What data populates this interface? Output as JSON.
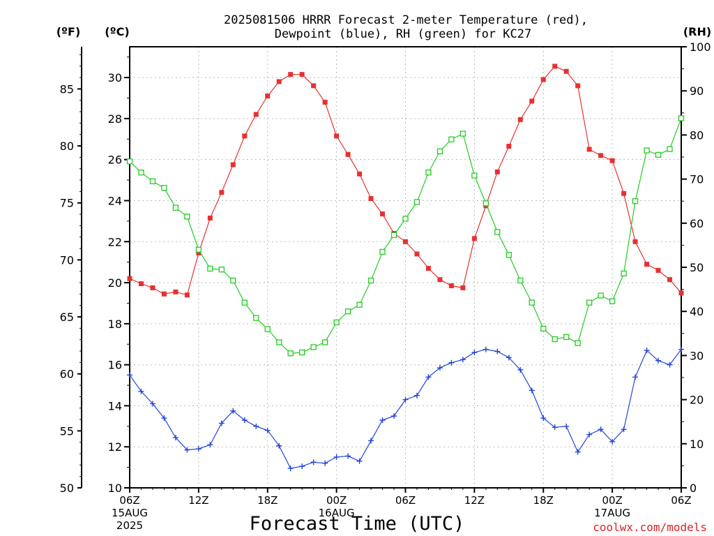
{
  "chart_data": {
    "type": "line",
    "title_line1": "2025081506 HRRR Forecast 2-meter Temperature (red),",
    "title_line2": "Dewpoint (blue), RH (green) for KC27",
    "xlabel": "Forecast Time (UTC)",
    "credit": "coolwx.com/models",
    "left_outer_unit": "(ºF)",
    "left_inner_unit": "(ºC)",
    "right_unit": "(RH)",
    "hours_range": [
      0,
      48
    ],
    "celsius_range": [
      10,
      31.5
    ],
    "fahrenheit_ticks": [
      50,
      55,
      60,
      65,
      70,
      75,
      80,
      85
    ],
    "celsius_ticks": [
      10,
      12,
      14,
      16,
      18,
      20,
      22,
      24,
      26,
      28,
      30
    ],
    "rh_range": [
      0,
      100
    ],
    "rh_ticks": [
      0,
      10,
      20,
      30,
      40,
      50,
      60,
      70,
      80,
      90,
      100
    ],
    "x_ticks": [
      {
        "h": 0,
        "lines": [
          "06Z",
          "15AUG",
          "2025"
        ]
      },
      {
        "h": 6,
        "lines": [
          "12Z"
        ]
      },
      {
        "h": 12,
        "lines": [
          "18Z"
        ]
      },
      {
        "h": 18,
        "lines": [
          "00Z",
          "16AUG"
        ]
      },
      {
        "h": 24,
        "lines": [
          "06Z"
        ]
      },
      {
        "h": 30,
        "lines": [
          "12Z"
        ]
      },
      {
        "h": 36,
        "lines": [
          "18Z"
        ]
      },
      {
        "h": 42,
        "lines": [
          "00Z",
          "17AUG"
        ]
      },
      {
        "h": 48,
        "lines": [
          "06Z"
        ]
      }
    ],
    "grid": true,
    "series": [
      {
        "name": "Temperature",
        "color": "#e83030",
        "marker": "filled-square",
        "axis": "celsius",
        "values": [
          20.2,
          19.95,
          19.75,
          19.45,
          19.55,
          19.4,
          21.45,
          23.15,
          24.4,
          25.75,
          27.15,
          28.2,
          29.1,
          29.8,
          30.15,
          30.15,
          29.6,
          28.8,
          27.15,
          26.25,
          25.3,
          24.1,
          23.35,
          22.4,
          22.0,
          21.4,
          20.7,
          20.15,
          19.85,
          19.75,
          22.15,
          23.75,
          25.4,
          26.65,
          27.95,
          28.85,
          29.9,
          30.55,
          30.3,
          29.6,
          26.5,
          26.2,
          25.95,
          24.35,
          22.0,
          20.9,
          20.6,
          20.15,
          19.5
        ]
      },
      {
        "name": "Dewpoint",
        "color": "#2244dd",
        "marker": "plus",
        "axis": "celsius",
        "values": [
          15.5,
          14.7,
          14.1,
          13.4,
          12.45,
          11.85,
          11.9,
          12.1,
          13.15,
          13.75,
          13.3,
          13.0,
          12.8,
          12.05,
          10.95,
          11.05,
          11.25,
          11.2,
          11.5,
          11.55,
          11.3,
          12.3,
          13.3,
          13.5,
          14.3,
          14.5,
          15.4,
          15.85,
          16.1,
          16.25,
          16.6,
          16.75,
          16.65,
          16.35,
          15.75,
          14.75,
          13.4,
          12.95,
          13.0,
          11.75,
          12.6,
          12.85,
          12.25,
          12.85,
          15.4,
          16.7,
          16.2,
          16.0,
          16.75
        ]
      },
      {
        "name": "RH",
        "color": "#22cc22",
        "marker": "open-square",
        "axis": "rh",
        "values": [
          74,
          71.5,
          69.5,
          68,
          63.5,
          61.5,
          54,
          49.7,
          49.5,
          47,
          42,
          38.5,
          36,
          33,
          30.5,
          30.7,
          31.9,
          33,
          37.5,
          40,
          41.5,
          47,
          53.5,
          57.3,
          61,
          64.8,
          71.5,
          76.3,
          79,
          80.3,
          70.8,
          64.5,
          58,
          52.8,
          47,
          42,
          36.1,
          33.7,
          34.2,
          32.8,
          42,
          43.6,
          42.3,
          48.6,
          65,
          76.5,
          75.5,
          76.8,
          83.8
        ]
      }
    ]
  }
}
